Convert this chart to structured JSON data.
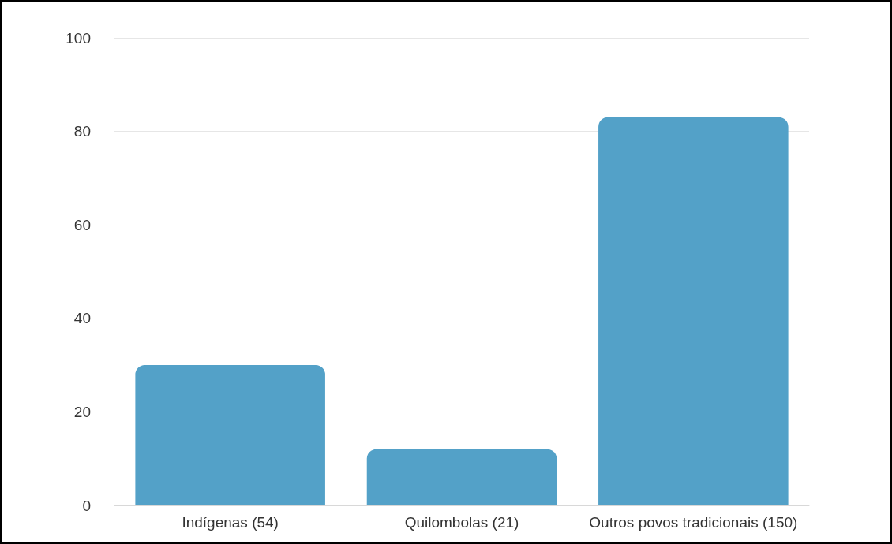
{
  "chart_data": {
    "type": "bar",
    "categories": [
      "Indígenas (54)",
      "Quilombolas (21)",
      "Outros povos tradicionais (150)"
    ],
    "values": [
      30,
      12,
      83
    ],
    "color": "#53a1c8",
    "ylim": [
      0,
      100
    ],
    "yticks": [
      0,
      20,
      40,
      60,
      80,
      100
    ],
    "grid": "y"
  }
}
